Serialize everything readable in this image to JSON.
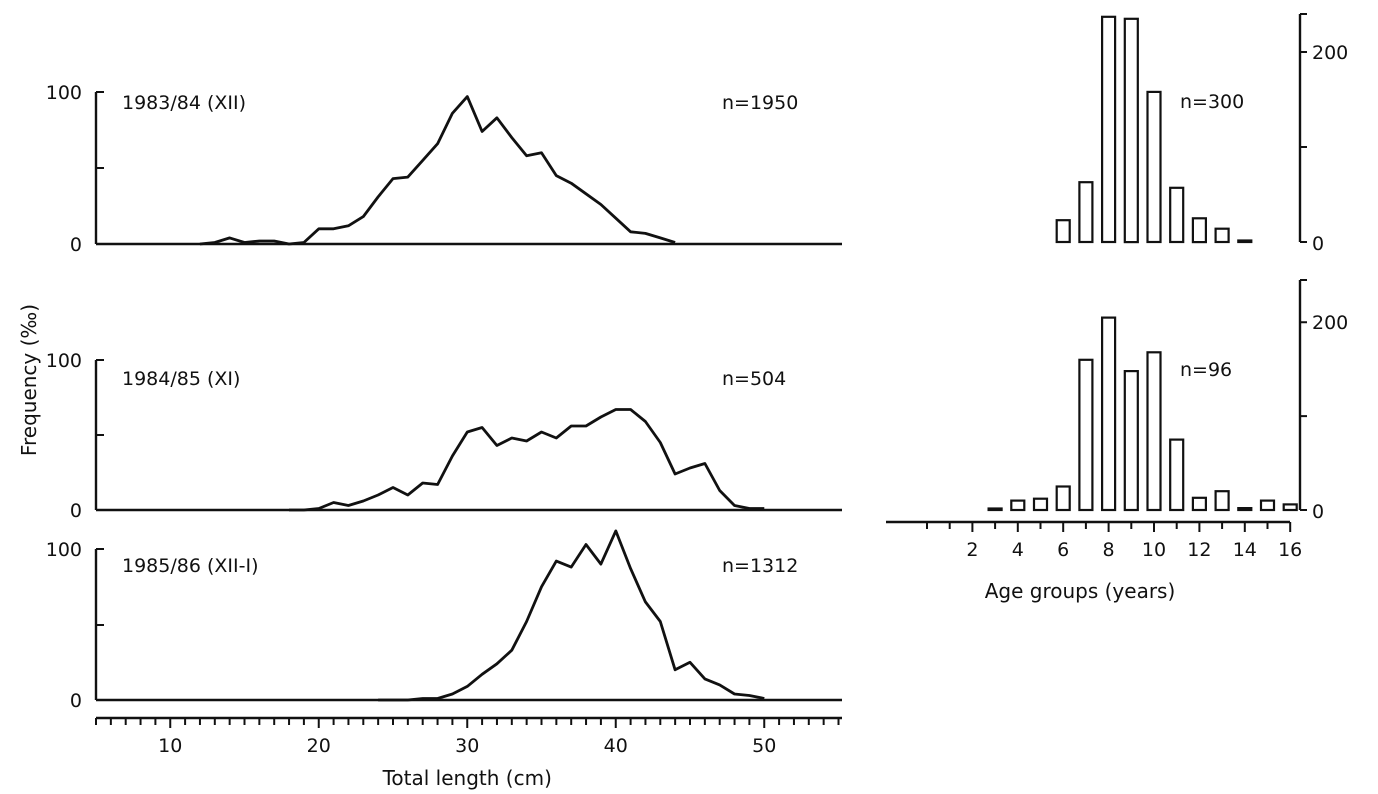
{
  "ylabel": "Frequency (‰)",
  "chart_data": [
    {
      "type": "line",
      "id": "len1",
      "panel_label": "1983/84 (XII)",
      "n_label": "n=1950",
      "ylim": [
        0,
        100
      ],
      "yticks": [
        "0",
        "100"
      ],
      "x": [
        12,
        13,
        14,
        15,
        16,
        17,
        18,
        19,
        20,
        21,
        22,
        23,
        24,
        25,
        26,
        27,
        28,
        29,
        30,
        31,
        32,
        33,
        34,
        35,
        36,
        37,
        38,
        39,
        40,
        41,
        42,
        43,
        44
      ],
      "values": [
        0,
        1,
        4,
        1,
        2,
        2,
        0,
        1,
        10,
        10,
        12,
        18,
        31,
        43,
        44,
        55,
        66,
        86,
        97,
        74,
        83,
        70,
        58,
        60,
        45,
        40,
        33,
        26,
        17,
        8,
        7,
        4,
        1
      ]
    },
    {
      "type": "line",
      "id": "len2",
      "panel_label": "1984/85 (XI)",
      "n_label": "n=504",
      "ylim": [
        0,
        100
      ],
      "yticks": [
        "0",
        "100"
      ],
      "x": [
        18,
        19,
        20,
        21,
        22,
        23,
        24,
        25,
        26,
        27,
        28,
        29,
        30,
        31,
        32,
        33,
        34,
        35,
        36,
        37,
        38,
        39,
        40,
        41,
        42,
        43,
        44,
        45,
        46,
        47,
        48,
        49,
        50
      ],
      "values": [
        0,
        0,
        1,
        5,
        3,
        6,
        10,
        15,
        10,
        18,
        17,
        36,
        52,
        55,
        43,
        48,
        46,
        52,
        48,
        56,
        56,
        62,
        67,
        67,
        59,
        45,
        24,
        28,
        31,
        13,
        3,
        1,
        1
      ]
    },
    {
      "type": "line",
      "id": "len3",
      "panel_label": "1985/86 (XII-I)",
      "n_label": "n=1312",
      "ylim": [
        0,
        100
      ],
      "yticks": [
        "0",
        "100"
      ],
      "xlabel": "Total length (cm)",
      "xticks": [
        "10",
        "20",
        "30",
        "40",
        "50"
      ],
      "x": [
        24,
        25,
        26,
        27,
        28,
        29,
        30,
        31,
        32,
        33,
        34,
        35,
        36,
        37,
        38,
        39,
        40,
        41,
        42,
        43,
        44,
        45,
        46,
        47,
        48,
        49,
        50
      ],
      "values": [
        0,
        0,
        0,
        1,
        1,
        4,
        9,
        17,
        24,
        33,
        52,
        75,
        92,
        88,
        103,
        90,
        112,
        87,
        65,
        52,
        20,
        25,
        14,
        10,
        4,
        3,
        1
      ]
    },
    {
      "type": "bar",
      "id": "age1",
      "n_label": "n=300",
      "ylim": [
        0,
        240
      ],
      "yticks": [
        "0",
        "200"
      ],
      "categories": [
        6,
        7,
        8,
        9,
        10,
        11,
        12,
        13,
        14
      ],
      "values": [
        23,
        63,
        237,
        235,
        158,
        57,
        25,
        14,
        1
      ]
    },
    {
      "type": "bar",
      "id": "age2",
      "n_label": "n=96",
      "ylim": [
        0,
        245
      ],
      "yticks": [
        "0",
        "200"
      ],
      "xlabel": "Age groups (years)",
      "xticks": [
        "2",
        "4",
        "6",
        "8",
        "10",
        "12",
        "14",
        "16"
      ],
      "categories": [
        3,
        4,
        5,
        6,
        7,
        8,
        9,
        10,
        11,
        12,
        13,
        14,
        15,
        16
      ],
      "values": [
        0,
        10,
        12,
        25,
        160,
        205,
        148,
        168,
        75,
        13,
        20,
        2,
        10,
        6
      ]
    }
  ]
}
